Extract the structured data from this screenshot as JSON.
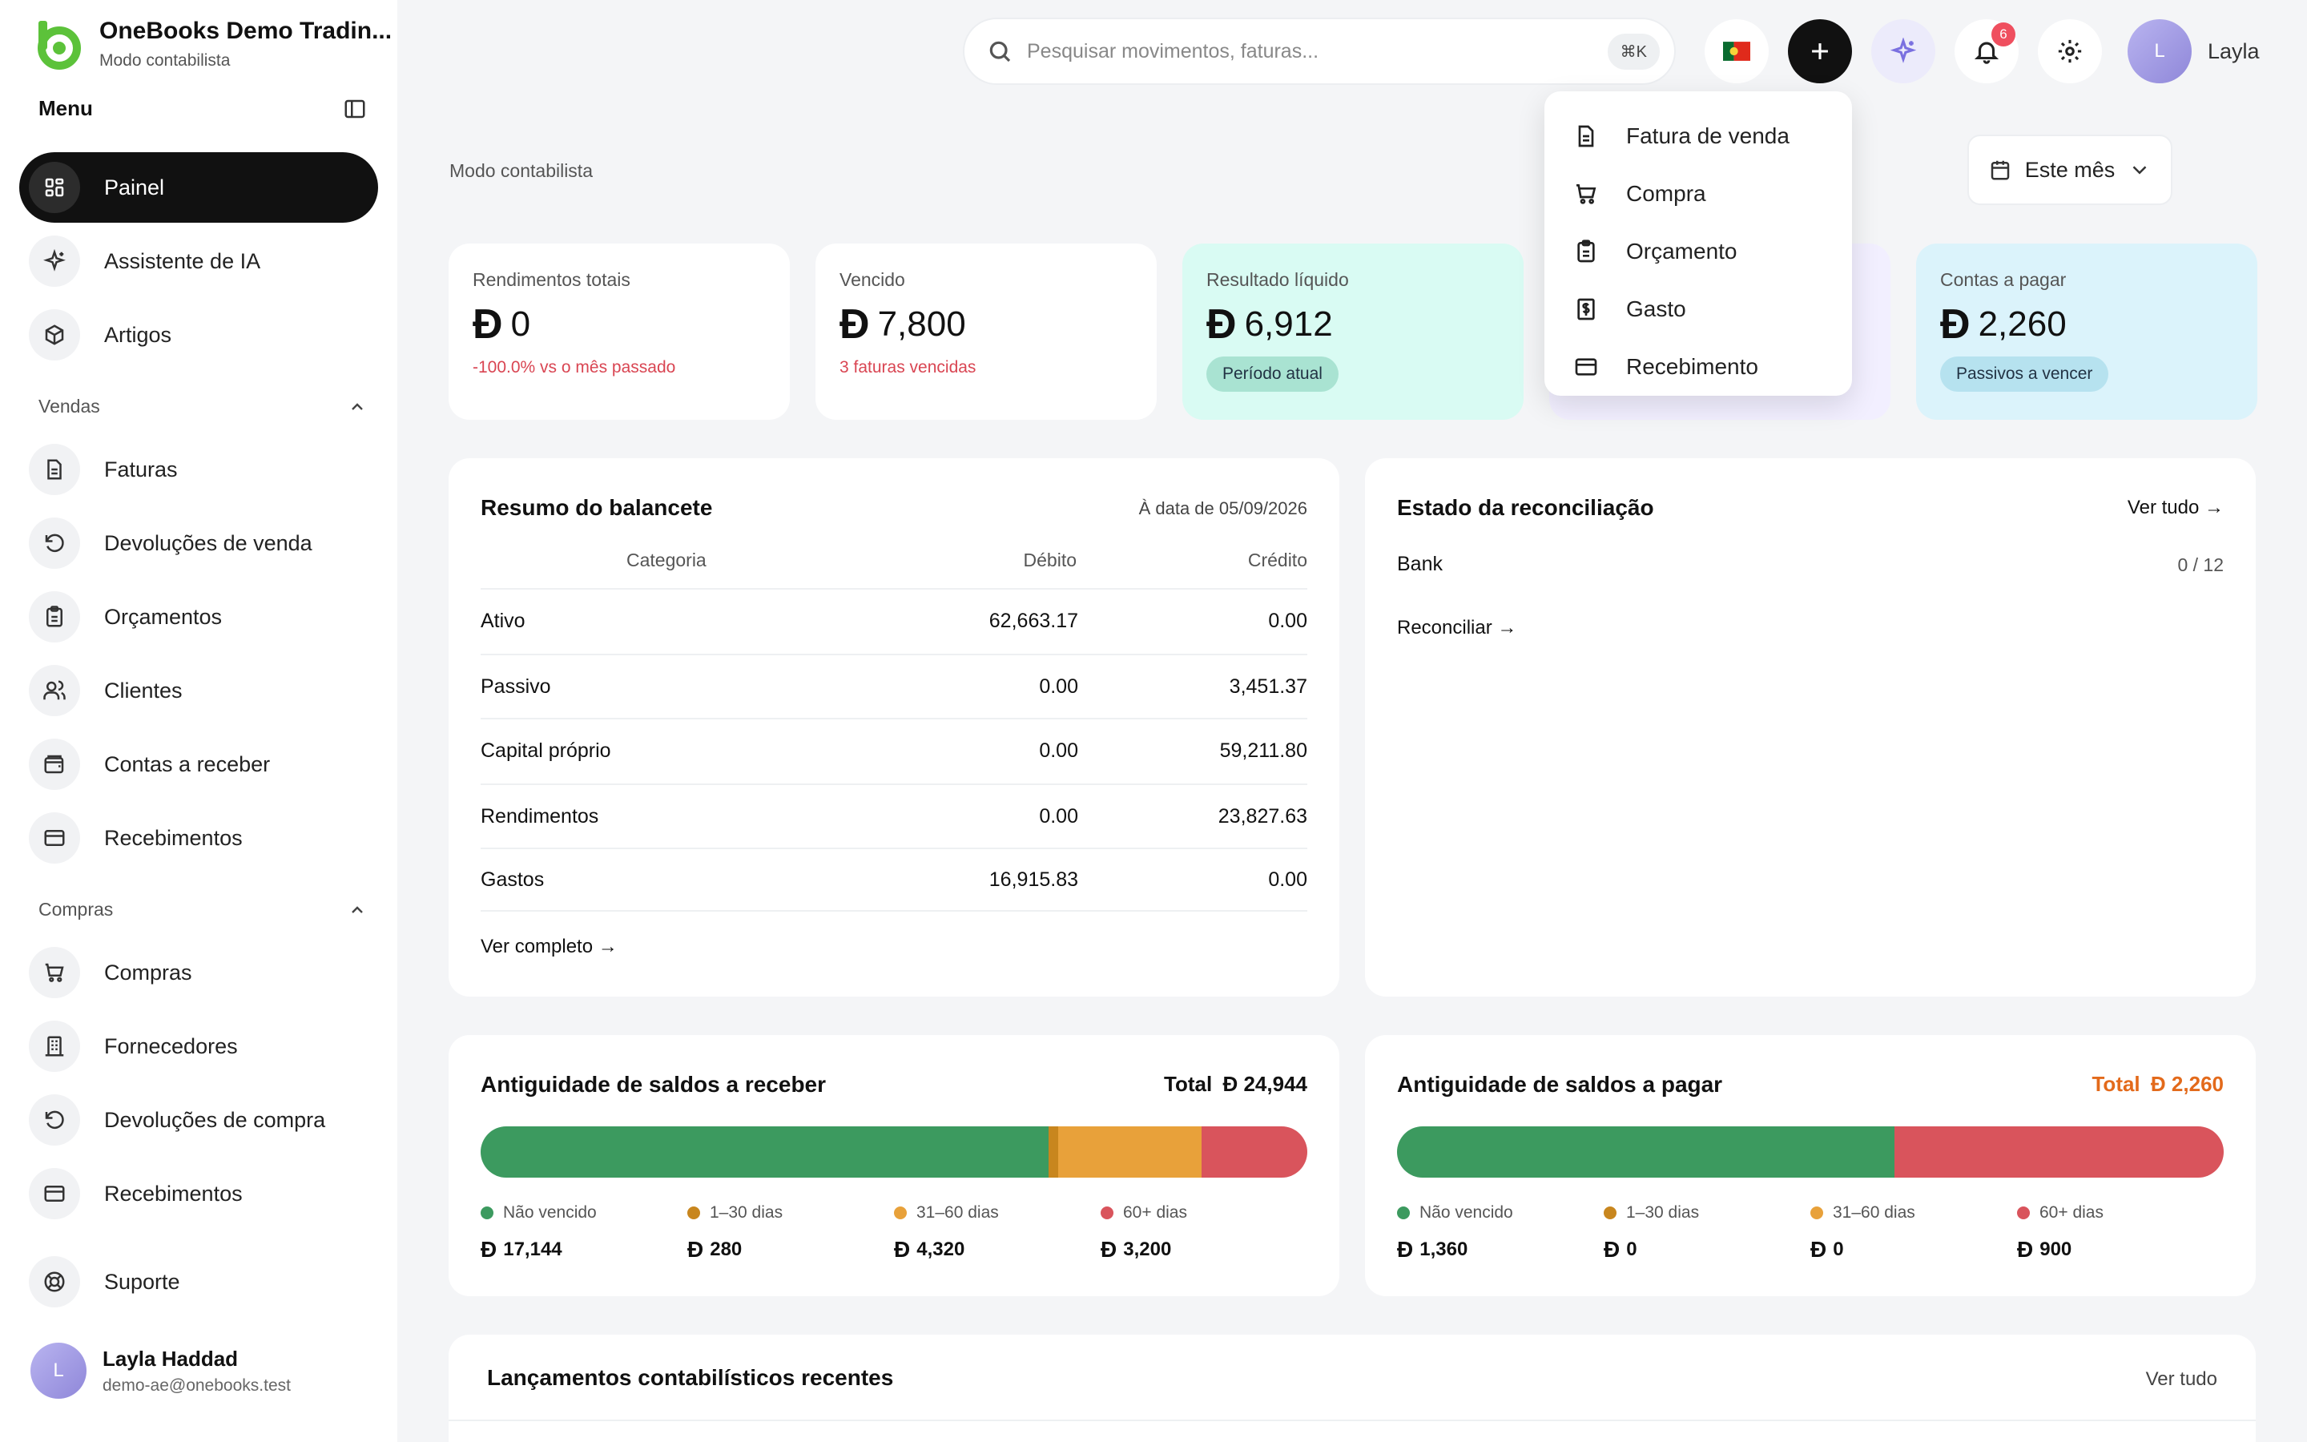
{
  "brand": {
    "name": "OneBooks Demo Tradin...",
    "mode": "Modo contabilista"
  },
  "menu": {
    "label": "Menu"
  },
  "sidebar": {
    "main": [
      {
        "label": "Painel",
        "icon": "grid-icon"
      },
      {
        "label": "Assistente de IA",
        "icon": "sparkle-icon"
      },
      {
        "label": "Artigos",
        "icon": "box-icon"
      }
    ],
    "sales_header": "Vendas",
    "sales": [
      {
        "label": "Faturas"
      },
      {
        "label": "Devoluções de venda"
      },
      {
        "label": "Orçamentos"
      },
      {
        "label": "Clientes"
      },
      {
        "label": "Contas a receber"
      },
      {
        "label": "Recebimentos"
      }
    ],
    "purchases_header": "Compras",
    "purchases": [
      {
        "label": "Compras"
      },
      {
        "label": "Fornecedores"
      },
      {
        "label": "Devoluções de compra"
      },
      {
        "label": "Recebimentos"
      }
    ],
    "support": "Suporte"
  },
  "user": {
    "initial": "L",
    "name": "Layla Haddad",
    "email": "demo-ae@onebooks.test",
    "short_name": "Layla"
  },
  "search": {
    "placeholder": "Pesquisar movimentos, faturas...",
    "shortcut": "⌘K"
  },
  "notifications": {
    "count": "6"
  },
  "new_menu": {
    "items": [
      {
        "label": "Fatura de venda"
      },
      {
        "label": "Compra"
      },
      {
        "label": "Orçamento"
      },
      {
        "label": "Gasto"
      },
      {
        "label": "Recebimento"
      }
    ]
  },
  "page": {
    "label": "Modo contabilista",
    "period": "Este mês"
  },
  "currency_symbol": "Ð",
  "kpis": [
    {
      "label": "Rendimentos totais",
      "value": "0",
      "note": "-100.0% vs o mês passado"
    },
    {
      "label": "Vencido",
      "value": "7,800",
      "note": "3 faturas vencidas"
    },
    {
      "label": "Resultado líquido",
      "value": "6,912",
      "pill": "Período atual"
    },
    {
      "label": "Contas a pagar",
      "value": "2,260",
      "pill": "Passivos a vencer"
    }
  ],
  "trial_balance": {
    "title": "Resumo do balancete",
    "as_of": "À data de 05/09/2026",
    "headers": {
      "category": "Categoria",
      "debit": "Débito",
      "credit": "Crédito"
    },
    "rows": [
      {
        "category": "Ativo",
        "debit": "62,663.17",
        "credit": "0.00"
      },
      {
        "category": "Passivo",
        "debit": "0.00",
        "credit": "3,451.37"
      },
      {
        "category": "Capital próprio",
        "debit": "0.00",
        "credit": "59,211.80"
      },
      {
        "category": "Rendimentos",
        "debit": "0.00",
        "credit": "23,827.63"
      },
      {
        "category": "Gastos",
        "debit": "16,915.83",
        "credit": "0.00"
      }
    ],
    "link": "Ver completo →"
  },
  "reconciliation": {
    "title": "Estado da reconciliação",
    "see_all": "Ver tudo →",
    "account": "Bank",
    "progress": "0 / 12",
    "link": "Reconciliar →"
  },
  "ar_aging": {
    "title": "Antiguidade de saldos a receber",
    "total_label": "Total",
    "total": "24,944",
    "buckets": [
      {
        "label": "Não vencido",
        "value": "17,144",
        "amount": 17144,
        "color": "#3c9a5f"
      },
      {
        "label": "1–30 dias",
        "value": "280",
        "amount": 280,
        "color": "#c8861e"
      },
      {
        "label": "31–60 dias",
        "value": "4,320",
        "amount": 4320,
        "color": "#e8a13a"
      },
      {
        "label": "60+ dias",
        "value": "3,200",
        "amount": 3200,
        "color": "#d9545c"
      }
    ]
  },
  "ap_aging": {
    "title": "Antiguidade de saldos a pagar",
    "total_label": "Total",
    "total": "2,260",
    "buckets": [
      {
        "label": "Não vencido",
        "value": "1,360",
        "amount": 1360,
        "color": "#3c9a5f"
      },
      {
        "label": "1–30 dias",
        "value": "0",
        "amount": 0,
        "color": "#c8861e"
      },
      {
        "label": "31–60 dias",
        "value": "0",
        "amount": 0,
        "color": "#e8a13a"
      },
      {
        "label": "60+ dias",
        "value": "900",
        "amount": 900,
        "color": "#d9545c"
      }
    ]
  },
  "recent_entries": {
    "title": "Lançamentos contabilísticos recentes",
    "see_all": "Ver tudo"
  }
}
